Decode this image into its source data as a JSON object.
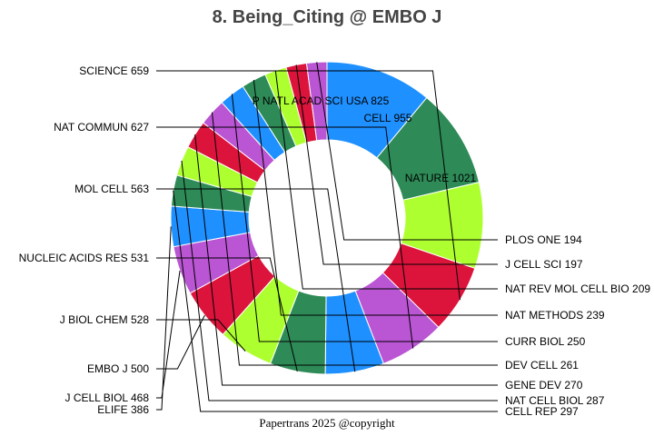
{
  "chart_data": {
    "type": "pie",
    "variant": "donut",
    "title": "8. Being_Citing @ EMBO J",
    "footer": "Papertrans 2025 @copyright",
    "slices": [
      {
        "name": "NATURE",
        "value": 1021,
        "color": "#1E90FF",
        "label": "NATURE 1021"
      },
      {
        "name": "CELL",
        "value": 955,
        "color": "#2E8B57",
        "label": "CELL 955"
      },
      {
        "name": "P NATL ACAD SCI USA",
        "value": 825,
        "color": "#ADFF2F",
        "label": "P NATL ACAD SCI USA 825"
      },
      {
        "name": "SCIENCE",
        "value": 659,
        "color": "#DC143C",
        "label": "SCIENCE 659"
      },
      {
        "name": "NAT COMMUN",
        "value": 627,
        "color": "#BA55D3",
        "label": "NAT COMMUN 627"
      },
      {
        "name": "MOL CELL",
        "value": 563,
        "color": "#1E90FF",
        "label": "MOL CELL 563"
      },
      {
        "name": "NUCLEIC ACIDS RES",
        "value": 531,
        "color": "#2E8B57",
        "label": "NUCLEIC ACIDS RES 531"
      },
      {
        "name": "J BIOL CHEM",
        "value": 528,
        "color": "#ADFF2F",
        "label": "J BIOL CHEM 528"
      },
      {
        "name": "EMBO J",
        "value": 500,
        "color": "#DC143C",
        "label": "EMBO J 500"
      },
      {
        "name": "J CELL BIOL",
        "value": 468,
        "color": "#BA55D3",
        "label": "J CELL BIOL 468"
      },
      {
        "name": "ELIFE",
        "value": 386,
        "color": "#1E90FF",
        "label": "ELIFE 386"
      },
      {
        "name": "CELL REP",
        "value": 297,
        "color": "#2E8B57",
        "label": "CELL REP 297"
      },
      {
        "name": "NAT CELL BIOL",
        "value": 287,
        "color": "#ADFF2F",
        "label": "NAT CELL BIOL 287"
      },
      {
        "name": "GENE DEV",
        "value": 270,
        "color": "#DC143C",
        "label": "GENE DEV 270"
      },
      {
        "name": "DEV CELL",
        "value": 261,
        "color": "#BA55D3",
        "label": "DEV CELL 261"
      },
      {
        "name": "CURR BIOL",
        "value": 250,
        "color": "#1E90FF",
        "label": "CURR BIOL 250"
      },
      {
        "name": "NAT METHODS",
        "value": 239,
        "color": "#2E8B57",
        "label": "NAT METHODS 239"
      },
      {
        "name": "NAT REV MOL CELL BIO",
        "value": 209,
        "color": "#ADFF2F",
        "label": "NAT REV MOL CELL BIO 209"
      },
      {
        "name": "J CELL SCI",
        "value": 197,
        "color": "#DC143C",
        "label": "J CELL SCI 197"
      },
      {
        "name": "PLOS ONE",
        "value": 194,
        "color": "#BA55D3",
        "label": "PLOS ONE 194"
      }
    ]
  }
}
